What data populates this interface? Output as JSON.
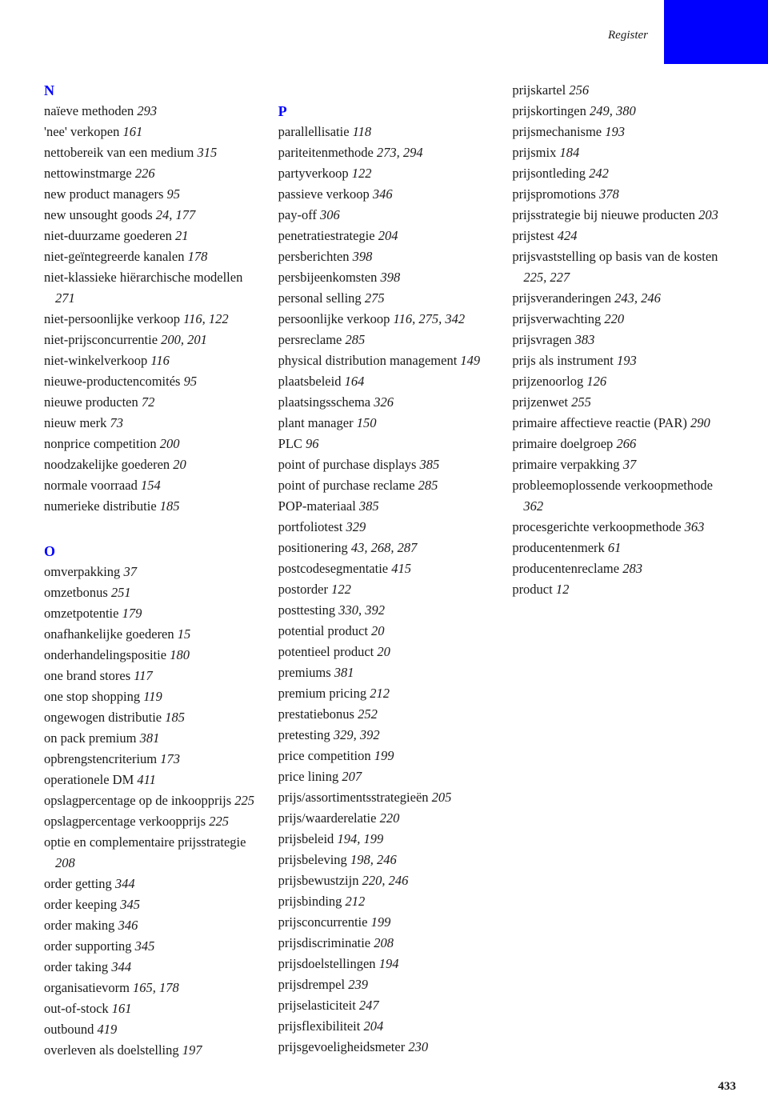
{
  "header": {
    "label": "Register"
  },
  "pagenum": "433",
  "accent_color": "#0000ff",
  "sections": [
    {
      "letter": "N",
      "first": true,
      "entries": [
        {
          "term": "naïeve methoden",
          "pages": "293"
        },
        {
          "term": "'nee' verkopen",
          "pages": "161"
        },
        {
          "term": "nettobereik van een medium",
          "pages": "315"
        },
        {
          "term": "nettowinstmarge",
          "pages": "226"
        },
        {
          "term": "new product managers",
          "pages": "95"
        },
        {
          "term": "new unsought goods",
          "pages": "24, 177"
        },
        {
          "term": "niet-duurzame goederen",
          "pages": "21"
        },
        {
          "term": "niet-geïntegreerde kanalen",
          "pages": "178"
        },
        {
          "term": "niet-klassieke hiërarchische modellen",
          "pages": "271"
        },
        {
          "term": "niet-persoonlijke verkoop",
          "pages": "116, 122"
        },
        {
          "term": "niet-prijsconcurrentie",
          "pages": "200, 201"
        },
        {
          "term": "niet-winkelverkoop",
          "pages": "116"
        },
        {
          "term": "nieuwe-productencomités",
          "pages": "95"
        },
        {
          "term": "nieuwe producten",
          "pages": "72"
        },
        {
          "term": "nieuw merk",
          "pages": "73"
        },
        {
          "term": "nonprice competition",
          "pages": "200"
        },
        {
          "term": "noodzakelijke goederen",
          "pages": "20"
        },
        {
          "term": "normale voorraad",
          "pages": "154"
        },
        {
          "term": "numerieke distributie",
          "pages": "185"
        }
      ]
    },
    {
      "letter": "O",
      "entries": [
        {
          "term": "omverpakking",
          "pages": "37"
        },
        {
          "term": "omzetbonus",
          "pages": "251"
        },
        {
          "term": "omzetpotentie",
          "pages": "179"
        },
        {
          "term": "onafhankelijke goederen",
          "pages": "15"
        },
        {
          "term": "onderhandelingspositie",
          "pages": "180"
        },
        {
          "term": "one brand stores",
          "pages": "117"
        },
        {
          "term": "one stop shopping",
          "pages": "119"
        },
        {
          "term": "ongewogen distributie",
          "pages": "185"
        },
        {
          "term": "on pack premium",
          "pages": "381"
        },
        {
          "term": "opbrengstencriterium",
          "pages": "173"
        },
        {
          "term": "operationele DM",
          "pages": "411"
        },
        {
          "term": "opslagpercentage op de inkoopprijs",
          "pages": "225"
        },
        {
          "term": "opslagpercentage verkoop­prijs",
          "pages": "225"
        },
        {
          "term": "optie en complementaire prijsstrategie",
          "pages": "208"
        },
        {
          "term": "order getting",
          "pages": "344"
        },
        {
          "term": "order keeping",
          "pages": "345"
        },
        {
          "term": "order making",
          "pages": "346"
        },
        {
          "term": "order supporting",
          "pages": "345"
        },
        {
          "term": "order taking",
          "pages": "344"
        },
        {
          "term": "organisatievorm",
          "pages": "165, 178"
        },
        {
          "term": "out-of-stock",
          "pages": "161"
        },
        {
          "term": "outbound",
          "pages": "419"
        },
        {
          "term": "overleven als doelstelling",
          "pages": "197"
        }
      ]
    },
    {
      "letter": "P",
      "entries": [
        {
          "term": "parallellisatie",
          "pages": "118"
        },
        {
          "term": "pariteitenmethode",
          "pages": "273, 294"
        },
        {
          "term": "partyverkoop",
          "pages": "122"
        },
        {
          "term": "passieve verkoop",
          "pages": "346"
        },
        {
          "term": "pay-off",
          "pages": "306"
        },
        {
          "term": "penetratiestrategie",
          "pages": "204"
        },
        {
          "term": "persberichten",
          "pages": "398"
        },
        {
          "term": "persbijeenkomsten",
          "pages": "398"
        },
        {
          "term": "personal selling",
          "pages": "275"
        },
        {
          "term": "persoonlijke verkoop",
          "pages": "116, 275, 342"
        },
        {
          "term": "persreclame",
          "pages": "285"
        },
        {
          "term": "physical distribution management",
          "pages": "149"
        },
        {
          "term": "plaatsbeleid",
          "pages": "164"
        },
        {
          "term": "plaatsingsschema",
          "pages": "326"
        },
        {
          "term": "plant manager",
          "pages": "150"
        },
        {
          "term": "PLC",
          "pages": "96"
        },
        {
          "term": "point of purchase displays",
          "pages": "385"
        },
        {
          "term": "point of purchase reclame",
          "pages": "285"
        },
        {
          "term": "POP-materiaal",
          "pages": "385"
        },
        {
          "term": "portfoliotest",
          "pages": "329"
        },
        {
          "term": "positionering",
          "pages": "43, 268, 287"
        },
        {
          "term": "postcodesegmentatie",
          "pages": "415"
        },
        {
          "term": "postorder",
          "pages": "122"
        },
        {
          "term": "posttesting",
          "pages": "330, 392"
        },
        {
          "term": "potential product",
          "pages": "20"
        },
        {
          "term": "potentieel product",
          "pages": "20"
        },
        {
          "term": "premiums",
          "pages": "381"
        },
        {
          "term": "premium pricing",
          "pages": "212"
        },
        {
          "term": "prestatiebonus",
          "pages": "252"
        },
        {
          "term": "pretesting",
          "pages": "329, 392"
        },
        {
          "term": "price competition",
          "pages": "199"
        },
        {
          "term": "price lining",
          "pages": "207"
        },
        {
          "term": "prijs/assortiments­strategieën",
          "pages": "205"
        },
        {
          "term": "prijs/waarderelatie",
          "pages": "220"
        },
        {
          "term": "prijsbeleid",
          "pages": "194, 199"
        },
        {
          "term": "prijsbeleving",
          "pages": "198, 246"
        },
        {
          "term": "prijsbewustzijn",
          "pages": "220, 246"
        },
        {
          "term": "prijsbinding",
          "pages": "212"
        },
        {
          "term": "prijsconcurrentie",
          "pages": "199"
        },
        {
          "term": "prijsdiscriminatie",
          "pages": "208"
        },
        {
          "term": "prijsdoelstellingen",
          "pages": "194"
        },
        {
          "term": "prijsdrempel",
          "pages": "239"
        },
        {
          "term": "prijselasticiteit",
          "pages": "247"
        },
        {
          "term": "prijsflexibiliteit",
          "pages": "204"
        },
        {
          "term": "prijsgevoeligheidsmeter",
          "pages": "230"
        },
        {
          "term": "prijskartel",
          "pages": "256"
        },
        {
          "term": "prijskortingen",
          "pages": "249, 380"
        },
        {
          "term": "prijsmechanisme",
          "pages": "193"
        },
        {
          "term": "prijsmix",
          "pages": "184"
        },
        {
          "term": "prijsontleding",
          "pages": "242"
        },
        {
          "term": "prijspromotions",
          "pages": "378"
        },
        {
          "term": "prijsstrategie bij nieuwe producten",
          "pages": "203"
        },
        {
          "term": "prijstest",
          "pages": "424"
        },
        {
          "term": "prijsvaststelling op basis van de kosten",
          "pages": "225, 227"
        },
        {
          "term": "prijsveranderingen",
          "pages": "243, 246"
        },
        {
          "term": "prijsverwachting",
          "pages": "220"
        },
        {
          "term": "prijsvragen",
          "pages": "383"
        },
        {
          "term": "prijs als instrument",
          "pages": "193"
        },
        {
          "term": "prijzenoorlog",
          "pages": "126"
        },
        {
          "term": "prijzenwet",
          "pages": "255"
        },
        {
          "term": "primaire affectieve reactie (PAR)",
          "pages": "290"
        },
        {
          "term": "primaire doelgroep",
          "pages": "266"
        },
        {
          "term": "primaire verpakking",
          "pages": "37"
        },
        {
          "term": "probleemoplossende verkoop­methode",
          "pages": "362"
        },
        {
          "term": "procesgerichte verkoop­methode",
          "pages": "363"
        },
        {
          "term": "producentenmerk",
          "pages": "61"
        },
        {
          "term": "producentenreclame",
          "pages": "283"
        },
        {
          "term": "product",
          "pages": "12"
        }
      ]
    }
  ]
}
